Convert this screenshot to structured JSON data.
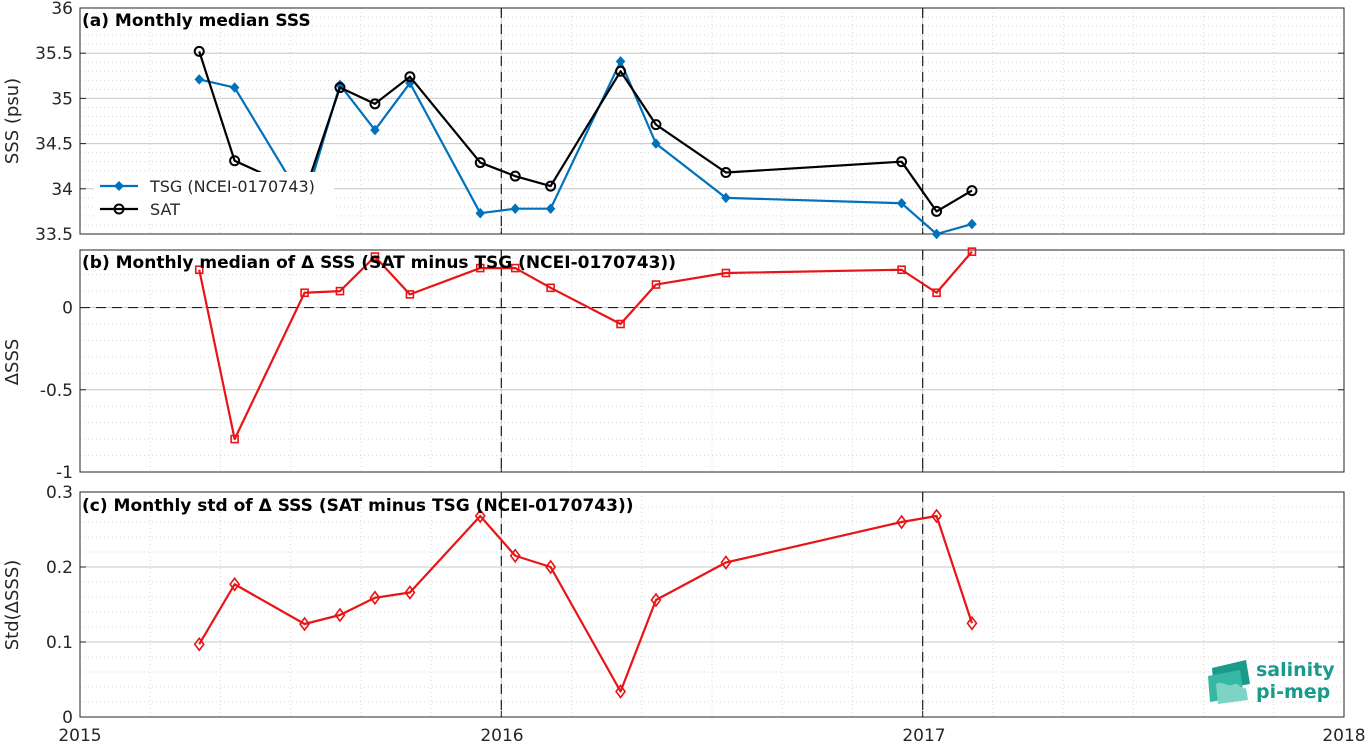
{
  "colors": {
    "tsg": "#0072BD",
    "sat": "#000000",
    "delta": "#E81416",
    "grid": "#d9d9d9",
    "logo": "#1a9a8a"
  },
  "x_axis": {
    "range": [
      2015,
      2018
    ],
    "ticks": [
      2015,
      2016,
      2017,
      2018
    ],
    "tick_labels": [
      "2015",
      "2016",
      "2017",
      "2018"
    ],
    "vertical_dashed_lines": [
      2016,
      2017
    ]
  },
  "logo": {
    "line1": "salinity",
    "line2": "pi-mep",
    "icon": "salinity-pimep-logo-icon"
  },
  "chart_data": [
    {
      "type": "line",
      "title": "(a) Monthly median SSS",
      "ylabel": "SSS (psu)",
      "ylim": [
        33.5,
        36
      ],
      "yticks": [
        33.5,
        34,
        34.5,
        35,
        35.5,
        36
      ],
      "ytick_labels": [
        "33.5",
        "34",
        "34.5",
        "35",
        "35.5",
        "36"
      ],
      "grid": true,
      "legend_placement": "middle-left",
      "series": [
        {
          "name": "TSG (NCEI-0170743)",
          "marker": "diamond-filled",
          "color": "#0072BD",
          "x": [
            2015.283,
            2015.367,
            2015.533,
            2015.617,
            2015.7,
            2015.783,
            2015.95,
            2016.033,
            2016.117,
            2016.283,
            2016.367,
            2016.533,
            2016.95,
            2017.033,
            2017.117
          ],
          "y": [
            35.21,
            35.12,
            33.84,
            35.15,
            34.65,
            35.17,
            33.73,
            33.78,
            33.78,
            35.41,
            34.5,
            33.9,
            33.84,
            33.5,
            33.61
          ]
        },
        {
          "name": "SAT",
          "marker": "circle-open",
          "color": "#000000",
          "x": [
            2015.283,
            2015.367,
            2015.533,
            2015.617,
            2015.7,
            2015.783,
            2015.95,
            2016.033,
            2016.117,
            2016.283,
            2016.367,
            2016.533,
            2016.95,
            2017.033,
            2017.117
          ],
          "y": [
            35.52,
            34.31,
            33.96,
            35.12,
            34.94,
            35.24,
            34.29,
            34.14,
            34.03,
            35.3,
            34.71,
            34.18,
            34.3,
            33.75,
            33.98
          ]
        }
      ]
    },
    {
      "type": "line",
      "title": "(b) Monthly median of Δ SSS (SAT minus TSG (NCEI-0170743))",
      "ylabel": "ΔSSS",
      "ylim": [
        -1,
        0.35
      ],
      "yticks": [
        -1,
        -0.5,
        0
      ],
      "ytick_labels": [
        "-1",
        "-0.5",
        "0"
      ],
      "zero_line": "dashed",
      "grid": true,
      "series": [
        {
          "marker": "square-open",
          "color": "#E81416",
          "x": [
            2015.283,
            2015.367,
            2015.533,
            2015.617,
            2015.7,
            2015.783,
            2015.95,
            2016.033,
            2016.117,
            2016.283,
            2016.367,
            2016.533,
            2016.95,
            2017.033,
            2017.117
          ],
          "y": [
            0.23,
            -0.8,
            0.09,
            0.1,
            0.31,
            0.08,
            0.24,
            0.24,
            0.12,
            -0.1,
            0.14,
            0.21,
            0.23,
            0.09,
            0.34
          ]
        }
      ]
    },
    {
      "type": "line",
      "title": "(c) Monthly std of Δ SSS (SAT minus TSG (NCEI-0170743))",
      "ylabel": "Std(ΔSSS)",
      "ylim": [
        0,
        0.3
      ],
      "yticks": [
        0,
        0.1,
        0.2,
        0.3
      ],
      "ytick_labels": [
        "0",
        "0.1",
        "0.2",
        "0.3"
      ],
      "grid": true,
      "series": [
        {
          "marker": "diamond-open",
          "color": "#E81416",
          "x": [
            2015.283,
            2015.367,
            2015.533,
            2015.617,
            2015.7,
            2015.783,
            2015.95,
            2016.033,
            2016.117,
            2016.283,
            2016.367,
            2016.533,
            2016.95,
            2017.033,
            2017.117
          ],
          "y": [
            0.097,
            0.177,
            0.124,
            0.136,
            0.159,
            0.166,
            0.268,
            0.215,
            0.2,
            0.034,
            0.156,
            0.206,
            0.26,
            0.268,
            0.125
          ]
        }
      ]
    }
  ]
}
